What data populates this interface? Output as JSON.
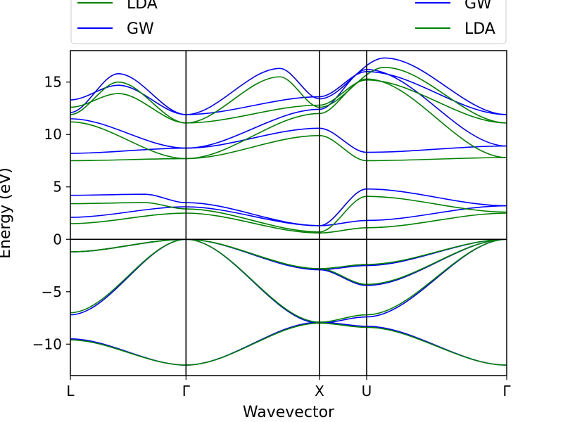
{
  "colors": {
    "gw": "#0000ff",
    "lda": "#008000",
    "axis": "#000000"
  },
  "chart_data": {
    "type": "line",
    "xlabel": "Wavevector",
    "ylabel": "Energy (eV)",
    "ylim": [
      -13,
      18
    ],
    "xlim": [
      0,
      1
    ],
    "grid": false,
    "yticks": [
      -10,
      -5,
      0,
      5,
      10,
      15
    ],
    "ytick_labels": [
      "−10",
      "−5",
      "0",
      "5",
      "10",
      "15"
    ],
    "kpoints": [
      {
        "label": "L",
        "x": 0.0
      },
      {
        "label": "Γ",
        "x": 0.265
      },
      {
        "label": "X",
        "x": 0.571
      },
      {
        "label": "U",
        "x": 0.679
      },
      {
        "label": "Γ",
        "x": 1.0
      }
    ],
    "legend_left": [
      "LDA",
      "GW"
    ],
    "legend_right": [
      "GW",
      "LDA"
    ],
    "legend_placement": "top, above plot",
    "series": [
      {
        "name": "GW",
        "color": "#0000ff",
        "bands": [
          [
            [
              0,
              -9.5
            ],
            [
              0.265,
              -12.0
            ],
            [
              0.571,
              -7.9
            ],
            [
              0.679,
              -8.3
            ],
            [
              1.0,
              -12.0
            ]
          ],
          [
            [
              0,
              -7.2
            ],
            [
              0.265,
              0.0
            ],
            [
              0.571,
              -8.0
            ],
            [
              0.679,
              -7.4
            ],
            [
              1.0,
              0.0
            ]
          ],
          [
            [
              0,
              -1.2
            ],
            [
              0.265,
              0.0
            ],
            [
              0.571,
              -2.9
            ],
            [
              0.679,
              -4.4
            ],
            [
              1.0,
              0.0
            ]
          ],
          [
            [
              0,
              -1.2
            ],
            [
              0.265,
              0.0
            ],
            [
              0.571,
              -2.9
            ],
            [
              0.679,
              -2.5
            ],
            [
              1.0,
              0.0
            ]
          ],
          [
            [
              0,
              2.1
            ],
            [
              0.265,
              3.1
            ],
            [
              0.571,
              1.3
            ],
            [
              0.679,
              1.8
            ],
            [
              1.0,
              3.2
            ]
          ],
          [
            [
              0,
              4.2
            ],
            [
              0.17,
              4.3
            ],
            [
              0.265,
              3.5
            ],
            [
              0.571,
              1.3
            ],
            [
              0.679,
              4.8
            ],
            [
              1.0,
              3.2
            ]
          ],
          [
            [
              0,
              8.2
            ],
            [
              0.265,
              8.7
            ],
            [
              0.571,
              10.6
            ],
            [
              0.679,
              8.3
            ],
            [
              1.0,
              8.9
            ]
          ],
          [
            [
              0,
              11.5
            ],
            [
              0.265,
              8.7
            ],
            [
              0.571,
              12.4
            ],
            [
              0.679,
              16.2
            ],
            [
              1.0,
              8.9
            ]
          ],
          [
            [
              0,
              13.3
            ],
            [
              0.11,
              14.7
            ],
            [
              0.265,
              11.9
            ],
            [
              0.571,
              13.6
            ],
            [
              0.679,
              16.0
            ],
            [
              1.0,
              11.9
            ]
          ],
          [
            [
              0,
              12.1
            ],
            [
              0.11,
              15.8
            ],
            [
              0.265,
              11.9
            ],
            [
              0.48,
              16.3
            ],
            [
              0.571,
              13.4
            ],
            [
              0.72,
              17.3
            ],
            [
              1.0,
              11.9
            ]
          ]
        ]
      },
      {
        "name": "LDA",
        "color": "#008000",
        "bands": [
          [
            [
              0,
              -9.6
            ],
            [
              0.265,
              -12.0
            ],
            [
              0.571,
              -8.0
            ],
            [
              0.679,
              -8.4
            ],
            [
              1.0,
              -12.0
            ]
          ],
          [
            [
              0,
              -7.0
            ],
            [
              0.265,
              0.0
            ],
            [
              0.571,
              -7.9
            ],
            [
              0.679,
              -7.2
            ],
            [
              1.0,
              0.0
            ]
          ],
          [
            [
              0,
              -1.2
            ],
            [
              0.265,
              0.0
            ],
            [
              0.571,
              -2.8
            ],
            [
              0.679,
              -4.3
            ],
            [
              1.0,
              0.0
            ]
          ],
          [
            [
              0,
              -1.2
            ],
            [
              0.265,
              0.0
            ],
            [
              0.571,
              -2.8
            ],
            [
              0.679,
              -2.4
            ],
            [
              1.0,
              0.0
            ]
          ],
          [
            [
              0,
              1.5
            ],
            [
              0.265,
              2.5
            ],
            [
              0.571,
              0.6
            ],
            [
              0.679,
              1.1
            ],
            [
              1.0,
              2.5
            ]
          ],
          [
            [
              0,
              3.4
            ],
            [
              0.17,
              3.5
            ],
            [
              0.265,
              2.9
            ],
            [
              0.571,
              0.7
            ],
            [
              0.679,
              4.1
            ],
            [
              1.0,
              2.6
            ]
          ],
          [
            [
              0,
              7.5
            ],
            [
              0.265,
              7.7
            ],
            [
              0.571,
              9.9
            ],
            [
              0.679,
              7.5
            ],
            [
              1.0,
              7.8
            ]
          ],
          [
            [
              0,
              11.2
            ],
            [
              0.265,
              7.7
            ],
            [
              0.571,
              12.0
            ],
            [
              0.679,
              15.3
            ],
            [
              1.0,
              7.8
            ]
          ],
          [
            [
              0,
              12.6
            ],
            [
              0.11,
              13.9
            ],
            [
              0.265,
              11.1
            ],
            [
              0.571,
              12.8
            ],
            [
              0.679,
              15.2
            ],
            [
              1.0,
              11.1
            ]
          ],
          [
            [
              0,
              11.9
            ],
            [
              0.11,
              15.0
            ],
            [
              0.265,
              11.1
            ],
            [
              0.48,
              15.5
            ],
            [
              0.571,
              12.6
            ],
            [
              0.72,
              16.4
            ],
            [
              1.0,
              11.1
            ]
          ]
        ]
      }
    ]
  }
}
